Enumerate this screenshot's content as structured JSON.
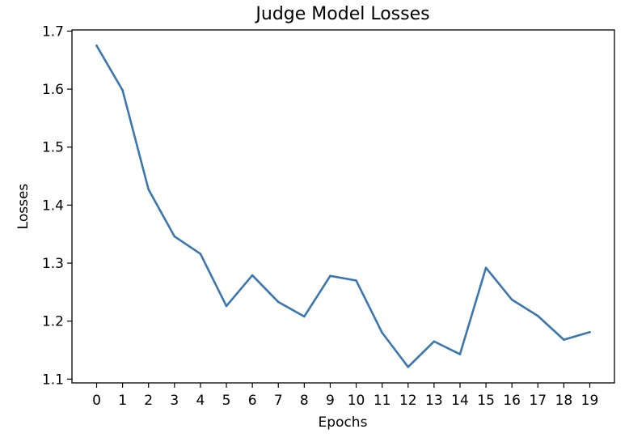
{
  "chart_data": {
    "type": "line",
    "title": "Judge Model Losses",
    "xlabel": "Epochs",
    "ylabel": "Losses",
    "x": [
      0,
      1,
      2,
      3,
      4,
      5,
      6,
      7,
      8,
      9,
      10,
      11,
      12,
      13,
      14,
      15,
      16,
      17,
      18,
      19
    ],
    "series": [
      {
        "values": [
          1.675,
          1.598,
          1.427,
          1.346,
          1.316,
          1.226,
          1.279,
          1.233,
          1.208,
          1.278,
          1.27,
          1.18,
          1.121,
          1.165,
          1.143,
          1.292,
          1.237,
          1.209,
          1.168,
          1.181
        ]
      }
    ],
    "xticks": [
      "0",
      "1",
      "2",
      "3",
      "4",
      "5",
      "6",
      "7",
      "8",
      "9",
      "10",
      "11",
      "12",
      "13",
      "14",
      "15",
      "16",
      "17",
      "18",
      "19"
    ],
    "yticks": [
      "1.1",
      "1.2",
      "1.3",
      "1.4",
      "1.5",
      "1.6",
      "1.7"
    ],
    "ylim": [
      1.0935,
      1.702
    ],
    "xlim": [
      -0.95,
      19.95
    ],
    "grid": false,
    "colors": {
      "line": "#3a76af"
    }
  }
}
